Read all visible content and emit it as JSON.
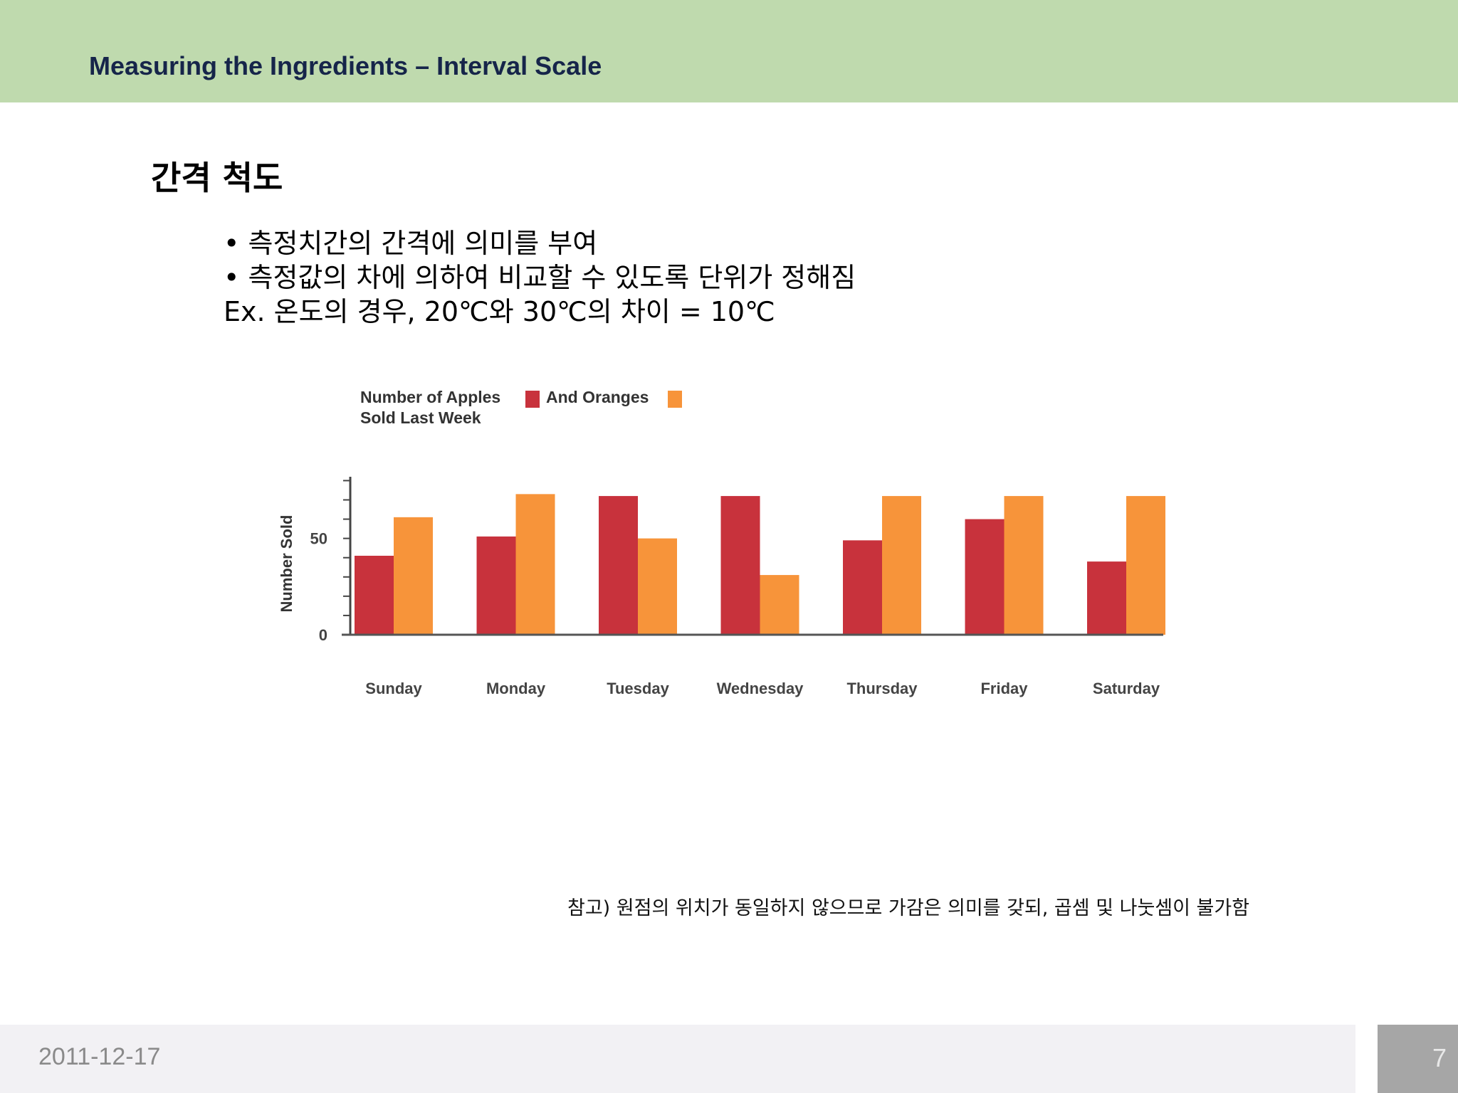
{
  "header": {
    "title": "Measuring the Ingredients – Interval Scale"
  },
  "content": {
    "heading": "간격 척도",
    "lines": [
      "• 측정치간의 간격에 의미를 부여",
      "• 측정값의 차에 의하여 비교할 수 있도록 단위가 정해짐",
      "Ex. 온도의 경우, 20℃와 30℃의 차이 = 10℃"
    ],
    "note": "참고) 원점의 위치가 동일하지 않으므로 가감은 의미를 갖되, 곱셈 및 나눗셈이 불가함"
  },
  "chart_data": {
    "type": "bar",
    "title_lines": [
      "Number of Apples",
      "Sold Last Week"
    ],
    "title_suffix": "And Oranges",
    "categories": [
      "Sunday",
      "Monday",
      "Tuesday",
      "Wednesday",
      "Thursday",
      "Friday",
      "Saturday"
    ],
    "series": [
      {
        "name": "Apples",
        "color": "#c8323c",
        "values": [
          41,
          51,
          72,
          72,
          49,
          60,
          38
        ]
      },
      {
        "name": "Oranges",
        "color": "#f7943a",
        "values": [
          61,
          73,
          50,
          31,
          72,
          72,
          72
        ]
      }
    ],
    "ylabel": "Number Sold",
    "ylim": [
      0,
      82
    ],
    "y_ticks": [
      0,
      50
    ],
    "grid": false,
    "legend": "top-left"
  },
  "footer": {
    "date": "2011-12-17",
    "page": "7"
  }
}
